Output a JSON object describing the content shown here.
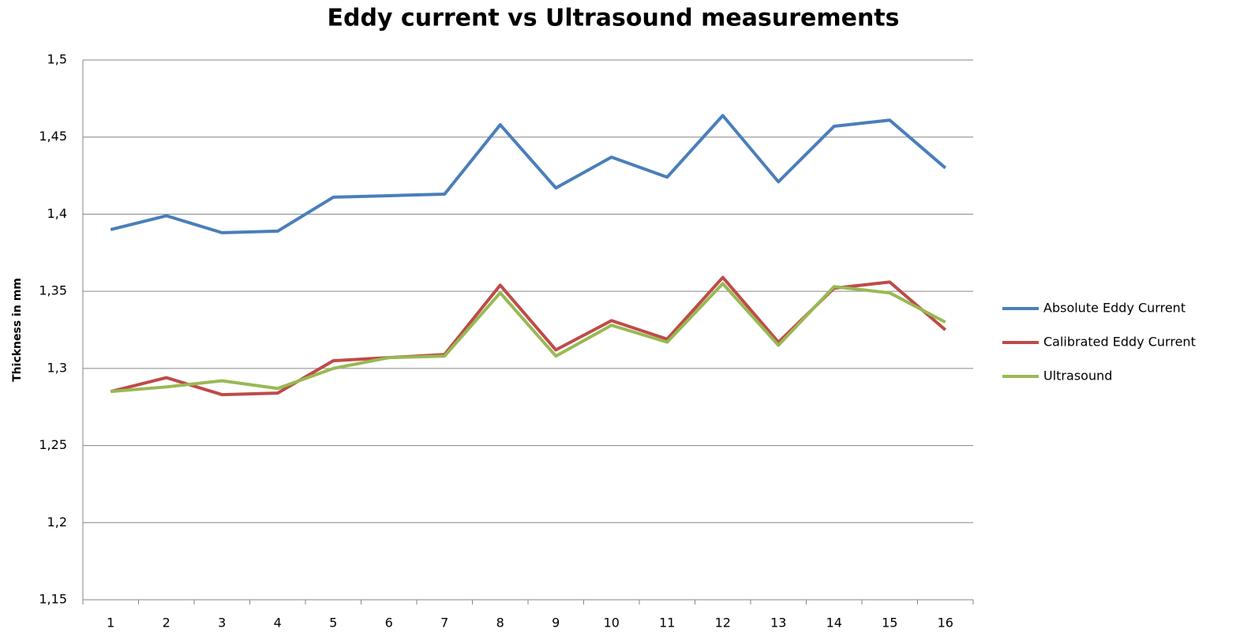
{
  "chart_data": {
    "type": "line",
    "title": "Eddy current  vs Ultrasound measurements",
    "y_label": "Thickness  in mm",
    "categories": [
      "1",
      "2",
      "3",
      "4",
      "5",
      "6",
      "7",
      "8",
      "9",
      "10",
      "11",
      "12",
      "13",
      "14",
      "15",
      "16"
    ],
    "series": [
      {
        "name": "Absolute Eddy Current",
        "color": "#4a7ebb",
        "values": [
          1.39,
          1.399,
          1.388,
          1.389,
          1.411,
          1.412,
          1.413,
          1.458,
          1.417,
          1.437,
          1.424,
          1.464,
          1.421,
          1.457,
          1.461,
          1.43
        ]
      },
      {
        "name": "Calibrated Eddy Current",
        "color": "#be4b48",
        "values": [
          1.285,
          1.294,
          1.283,
          1.284,
          1.305,
          1.307,
          1.309,
          1.354,
          1.312,
          1.331,
          1.319,
          1.359,
          1.317,
          1.352,
          1.356,
          1.325
        ]
      },
      {
        "name": "Ultrasound",
        "color": "#98b954",
        "values": [
          1.285,
          1.288,
          1.292,
          1.287,
          1.3,
          1.307,
          1.308,
          1.349,
          1.308,
          1.328,
          1.317,
          1.355,
          1.315,
          1.353,
          1.349,
          1.33
        ]
      }
    ],
    "ylim": [
      1.15,
      1.5
    ],
    "yticks": [
      {
        "value": 1.15,
        "label": "1,15"
      },
      {
        "value": 1.2,
        "label": "1,2"
      },
      {
        "value": 1.25,
        "label": "1,25"
      },
      {
        "value": 1.3,
        "label": "1,3"
      },
      {
        "value": 1.35,
        "label": "1,35"
      },
      {
        "value": 1.4,
        "label": "1,4"
      },
      {
        "value": 1.45,
        "label": "1,45"
      },
      {
        "value": 1.5,
        "label": "1,5"
      }
    ],
    "grid": true,
    "legend": "right"
  }
}
